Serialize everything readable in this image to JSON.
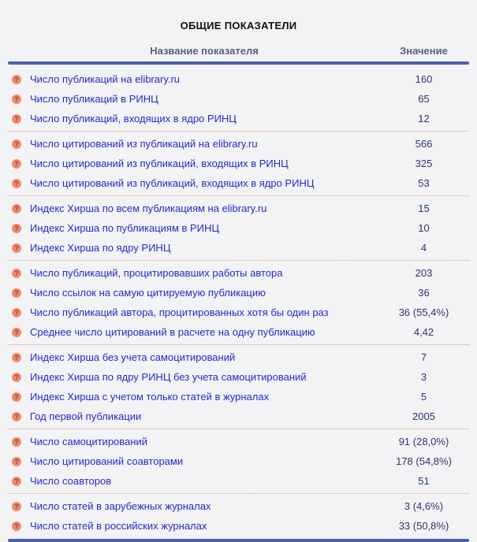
{
  "title": "ОБЩИЕ ПОКАЗАТЕЛИ",
  "columns": {
    "name": "Название показателя",
    "value": "Значение"
  },
  "icons": {
    "help": "?"
  },
  "colors": {
    "page_background": "#f3f3f6",
    "rule_blue": "#4c61aa",
    "separator_dotted": "#ea937c",
    "label_text": "#2727cd",
    "value_text": "#32326f",
    "header_text": "#57617a",
    "help_icon_background": "#ef8a6d",
    "help_icon_glyph": "#a03a28"
  },
  "groups": [
    {
      "rows": [
        {
          "label": "Число публикаций на elibrary.ru",
          "value": "160"
        },
        {
          "label": "Число публикаций в РИНЦ",
          "value": "65"
        },
        {
          "label": "Число публикаций, входящих в ядро РИНЦ",
          "value": "12"
        }
      ]
    },
    {
      "rows": [
        {
          "label": "Число цитирований из публикаций на elibrary.ru",
          "value": "566"
        },
        {
          "label": "Число цитирований из публикаций, входящих в РИНЦ",
          "value": "325"
        },
        {
          "label": "Число цитирований из публикаций, входящих в ядро РИНЦ",
          "value": "53"
        }
      ]
    },
    {
      "rows": [
        {
          "label": "Индекс Хирша по всем публикациям на elibrary.ru",
          "value": "15"
        },
        {
          "label": "Индекс Хирша по публикациям в РИНЦ",
          "value": "10"
        },
        {
          "label": "Индекс Хирша по ядру РИНЦ",
          "value": "4"
        }
      ]
    },
    {
      "rows": [
        {
          "label": "Число публикаций, процитировавших работы автора",
          "value": "203"
        },
        {
          "label": "Число ссылок на самую цитируемую публикацию",
          "value": "36"
        },
        {
          "label": "Число публикаций автора, процитированных хотя бы один раз",
          "value": "36 (55,4%)"
        },
        {
          "label": "Среднее число цитирований в расчете на одну публикацию",
          "value": "4,42"
        }
      ]
    },
    {
      "rows": [
        {
          "label": "Индекс Хирша без учета самоцитирований",
          "value": "7"
        },
        {
          "label": "Индекс Хирша по ядру РИНЦ без учета самоцитирований",
          "value": "3"
        },
        {
          "label": "Индекс Хирша с учетом только статей в журналах",
          "value": "5"
        },
        {
          "label": "Год первой публикации",
          "value": "2005"
        }
      ]
    },
    {
      "rows": [
        {
          "label": "Число самоцитирований",
          "value": "91 (28,0%)"
        },
        {
          "label": "Число цитирований соавторами",
          "value": "178 (54,8%)"
        },
        {
          "label": "Число соавторов",
          "value": "51"
        }
      ]
    },
    {
      "rows": [
        {
          "label": "Число статей в зарубежных журналах",
          "value": "3 (4,6%)"
        },
        {
          "label": "Число статей в российских журналах",
          "value": "33 (50,8%)"
        }
      ]
    }
  ]
}
